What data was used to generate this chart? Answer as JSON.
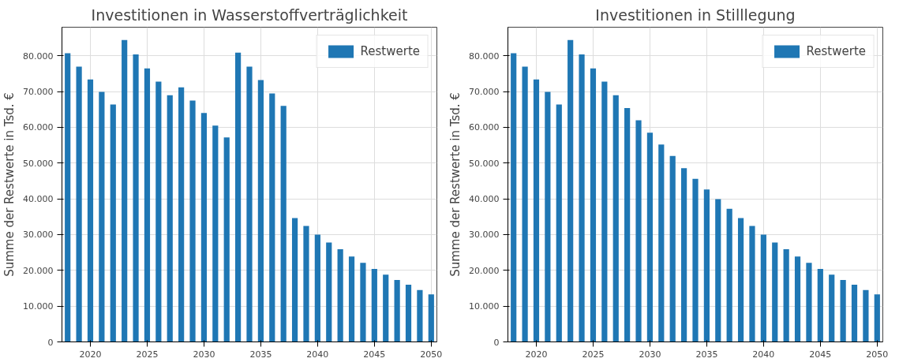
{
  "chart_data": [
    {
      "type": "bar",
      "title": "Investitionen in Wasserstoffverträglichkeit",
      "ylabel": "Summe der Restwerte in Tsd. €",
      "x": [
        2018,
        2019,
        2020,
        2021,
        2022,
        2023,
        2024,
        2025,
        2026,
        2027,
        2028,
        2029,
        2030,
        2031,
        2032,
        2033,
        2034,
        2035,
        2036,
        2037,
        2038,
        2039,
        2040,
        2041,
        2042,
        2043,
        2044,
        2045,
        2046,
        2047,
        2048,
        2049,
        2050
      ],
      "series": [
        {
          "name": "Restwerte",
          "color": "#1f77b4",
          "values": [
            80700,
            77000,
            73400,
            69900,
            66400,
            84400,
            80400,
            76500,
            72800,
            69000,
            71200,
            67500,
            64000,
            60500,
            57200,
            80900,
            77000,
            73200,
            69500,
            66000,
            34600,
            32400,
            30000,
            27800,
            25900,
            23900,
            22100,
            20400,
            18800,
            17300,
            16000,
            14500,
            13300
          ]
        }
      ],
      "xlim": [
        2017.5,
        2050.5
      ],
      "xticks": [
        2020,
        2025,
        2030,
        2035,
        2040,
        2045,
        2050
      ],
      "ylim": [
        0,
        88000
      ],
      "yticks": [
        {
          "value": 0,
          "label": "0"
        },
        {
          "value": 10000,
          "label": "10.000"
        },
        {
          "value": 20000,
          "label": "20.000"
        },
        {
          "value": 30000,
          "label": "30.000"
        },
        {
          "value": 40000,
          "label": "40.000"
        },
        {
          "value": 50000,
          "label": "50.000"
        },
        {
          "value": 60000,
          "label": "60.000"
        },
        {
          "value": 70000,
          "label": "70.000"
        },
        {
          "value": 80000,
          "label": "80.000"
        }
      ],
      "grid": true,
      "legend": "top right"
    },
    {
      "type": "bar",
      "title": "Investitionen in Stilllegung",
      "ylabel": "Summe der Restwerte in Tsd. €",
      "x": [
        2018,
        2019,
        2020,
        2021,
        2022,
        2023,
        2024,
        2025,
        2026,
        2027,
        2028,
        2029,
        2030,
        2031,
        2032,
        2033,
        2034,
        2035,
        2036,
        2037,
        2038,
        2039,
        2040,
        2041,
        2042,
        2043,
        2044,
        2045,
        2046,
        2047,
        2048,
        2049,
        2050
      ],
      "series": [
        {
          "name": "Restwerte",
          "color": "#1f77b4",
          "values": [
            80700,
            77000,
            73400,
            69900,
            66400,
            84400,
            80400,
            76500,
            72800,
            69000,
            65400,
            62000,
            58500,
            55200,
            52000,
            48600,
            45600,
            42600,
            39900,
            37200,
            34600,
            32400,
            30000,
            27800,
            25900,
            23900,
            22100,
            20400,
            18800,
            17300,
            16000,
            14500,
            13300
          ]
        }
      ],
      "xlim": [
        2017.5,
        2050.5
      ],
      "xticks": [
        2020,
        2025,
        2030,
        2035,
        2040,
        2045,
        2050
      ],
      "ylim": [
        0,
        88000
      ],
      "yticks": [
        {
          "value": 0,
          "label": "0"
        },
        {
          "value": 10000,
          "label": "10.000"
        },
        {
          "value": 20000,
          "label": "20.000"
        },
        {
          "value": 30000,
          "label": "30.000"
        },
        {
          "value": 40000,
          "label": "40.000"
        },
        {
          "value": 50000,
          "label": "50.000"
        },
        {
          "value": 60000,
          "label": "60.000"
        },
        {
          "value": 70000,
          "label": "70.000"
        },
        {
          "value": 80000,
          "label": "80.000"
        }
      ],
      "grid": true,
      "legend": "top right"
    }
  ]
}
